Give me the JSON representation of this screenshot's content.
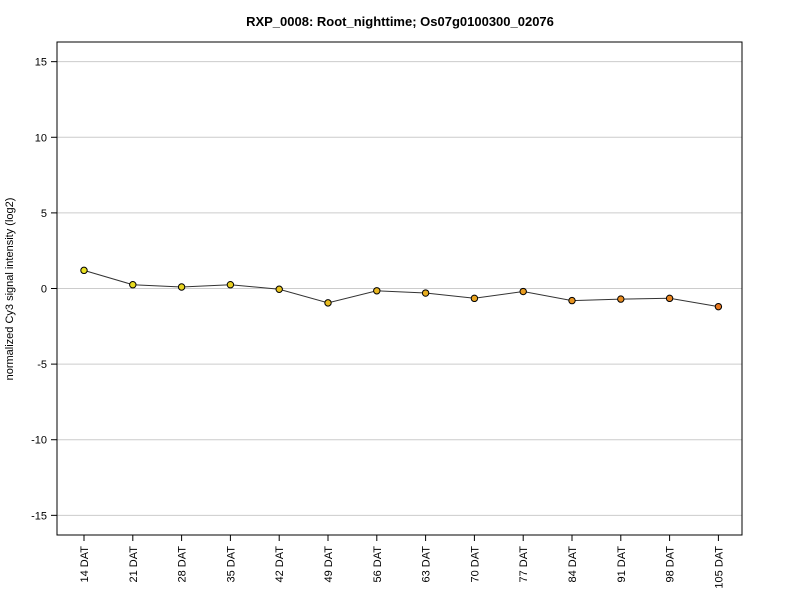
{
  "chart_data": {
    "type": "line",
    "title": "RXP_0008: Root_nighttime; Os07g0100300_02076",
    "xlabel": "",
    "ylabel": "normalized Cy3 signal intensity (log2)",
    "ylim": [
      -16.3,
      16.3
    ],
    "yticks": [
      -15,
      -10,
      -5,
      0,
      5,
      10,
      15
    ],
    "ytick_labels": [
      "-15",
      "-10",
      "-5",
      "0",
      "5",
      "10",
      "15"
    ],
    "grid": "horizontal",
    "categories": [
      "14 DAT",
      "21 DAT",
      "28 DAT",
      "35 DAT",
      "42 DAT",
      "49 DAT",
      "56 DAT",
      "63 DAT",
      "70 DAT",
      "77 DAT",
      "84 DAT",
      "91 DAT",
      "98 DAT",
      "105 DAT"
    ],
    "values": [
      1.2,
      0.25,
      0.1,
      0.25,
      -0.05,
      -0.95,
      -0.15,
      -0.3,
      -0.65,
      -0.2,
      -0.8,
      -0.7,
      -0.65,
      -1.2
    ],
    "point_colors": [
      "#e8e020",
      "#e8dc20",
      "#e8d420",
      "#e8ce20",
      "#e8c420",
      "#e8bc20",
      "#e8b620",
      "#e8ae20",
      "#e8a420",
      "#e89c20",
      "#e89420",
      "#e88c20",
      "#e88420",
      "#e87820"
    ],
    "line_color": "#333333",
    "grid_color": "#cccccc"
  }
}
